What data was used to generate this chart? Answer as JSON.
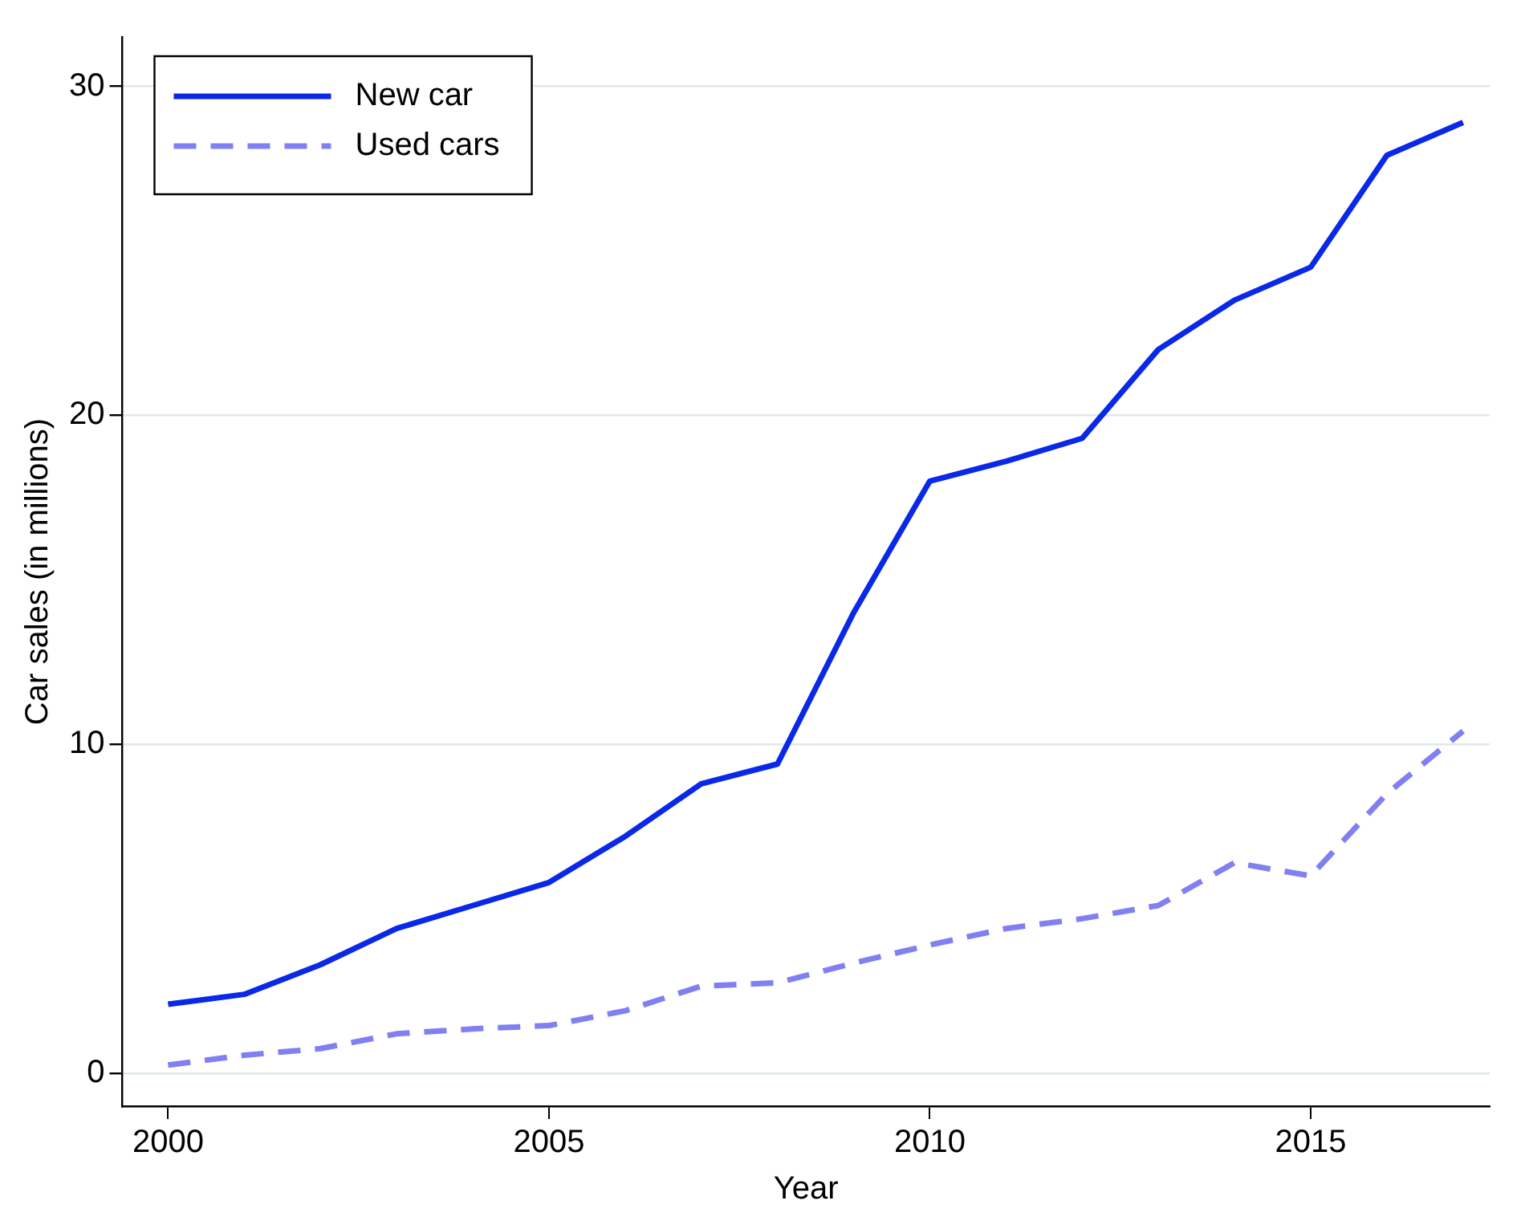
{
  "chart_data": {
    "type": "line",
    "xlabel": "Year",
    "ylabel": "Car sales (in millions)",
    "x": [
      2000,
      2001,
      2002,
      2003,
      2004,
      2005,
      2006,
      2007,
      2008,
      2009,
      2010,
      2011,
      2012,
      2013,
      2014,
      2015,
      2016,
      2017
    ],
    "series": [
      {
        "name": "New car",
        "color": "#0a28e8",
        "line_style": "solid",
        "values": [
          2.1,
          2.4,
          3.3,
          4.4,
          5.1,
          5.8,
          7.2,
          8.8,
          9.4,
          14.0,
          18.0,
          18.6,
          19.3,
          22.0,
          23.5,
          24.5,
          27.9,
          28.9
        ]
      },
      {
        "name": "Used cars",
        "color": "#8080f2",
        "line_style": "dashed",
        "values": [
          0.25,
          0.55,
          0.75,
          1.2,
          1.35,
          1.45,
          1.9,
          2.65,
          2.75,
          3.35,
          3.9,
          4.4,
          4.7,
          5.1,
          6.4,
          6.0,
          8.5,
          10.4
        ]
      }
    ],
    "xlim": [
      1999.4,
      2017.35
    ],
    "xticks": [
      2000,
      2005,
      2010,
      2015
    ],
    "ylim": [
      -1,
      31.5
    ],
    "yticks": [
      0,
      10,
      20,
      30
    ],
    "grid": "y",
    "legend": "top left",
    "marker": "none"
  }
}
